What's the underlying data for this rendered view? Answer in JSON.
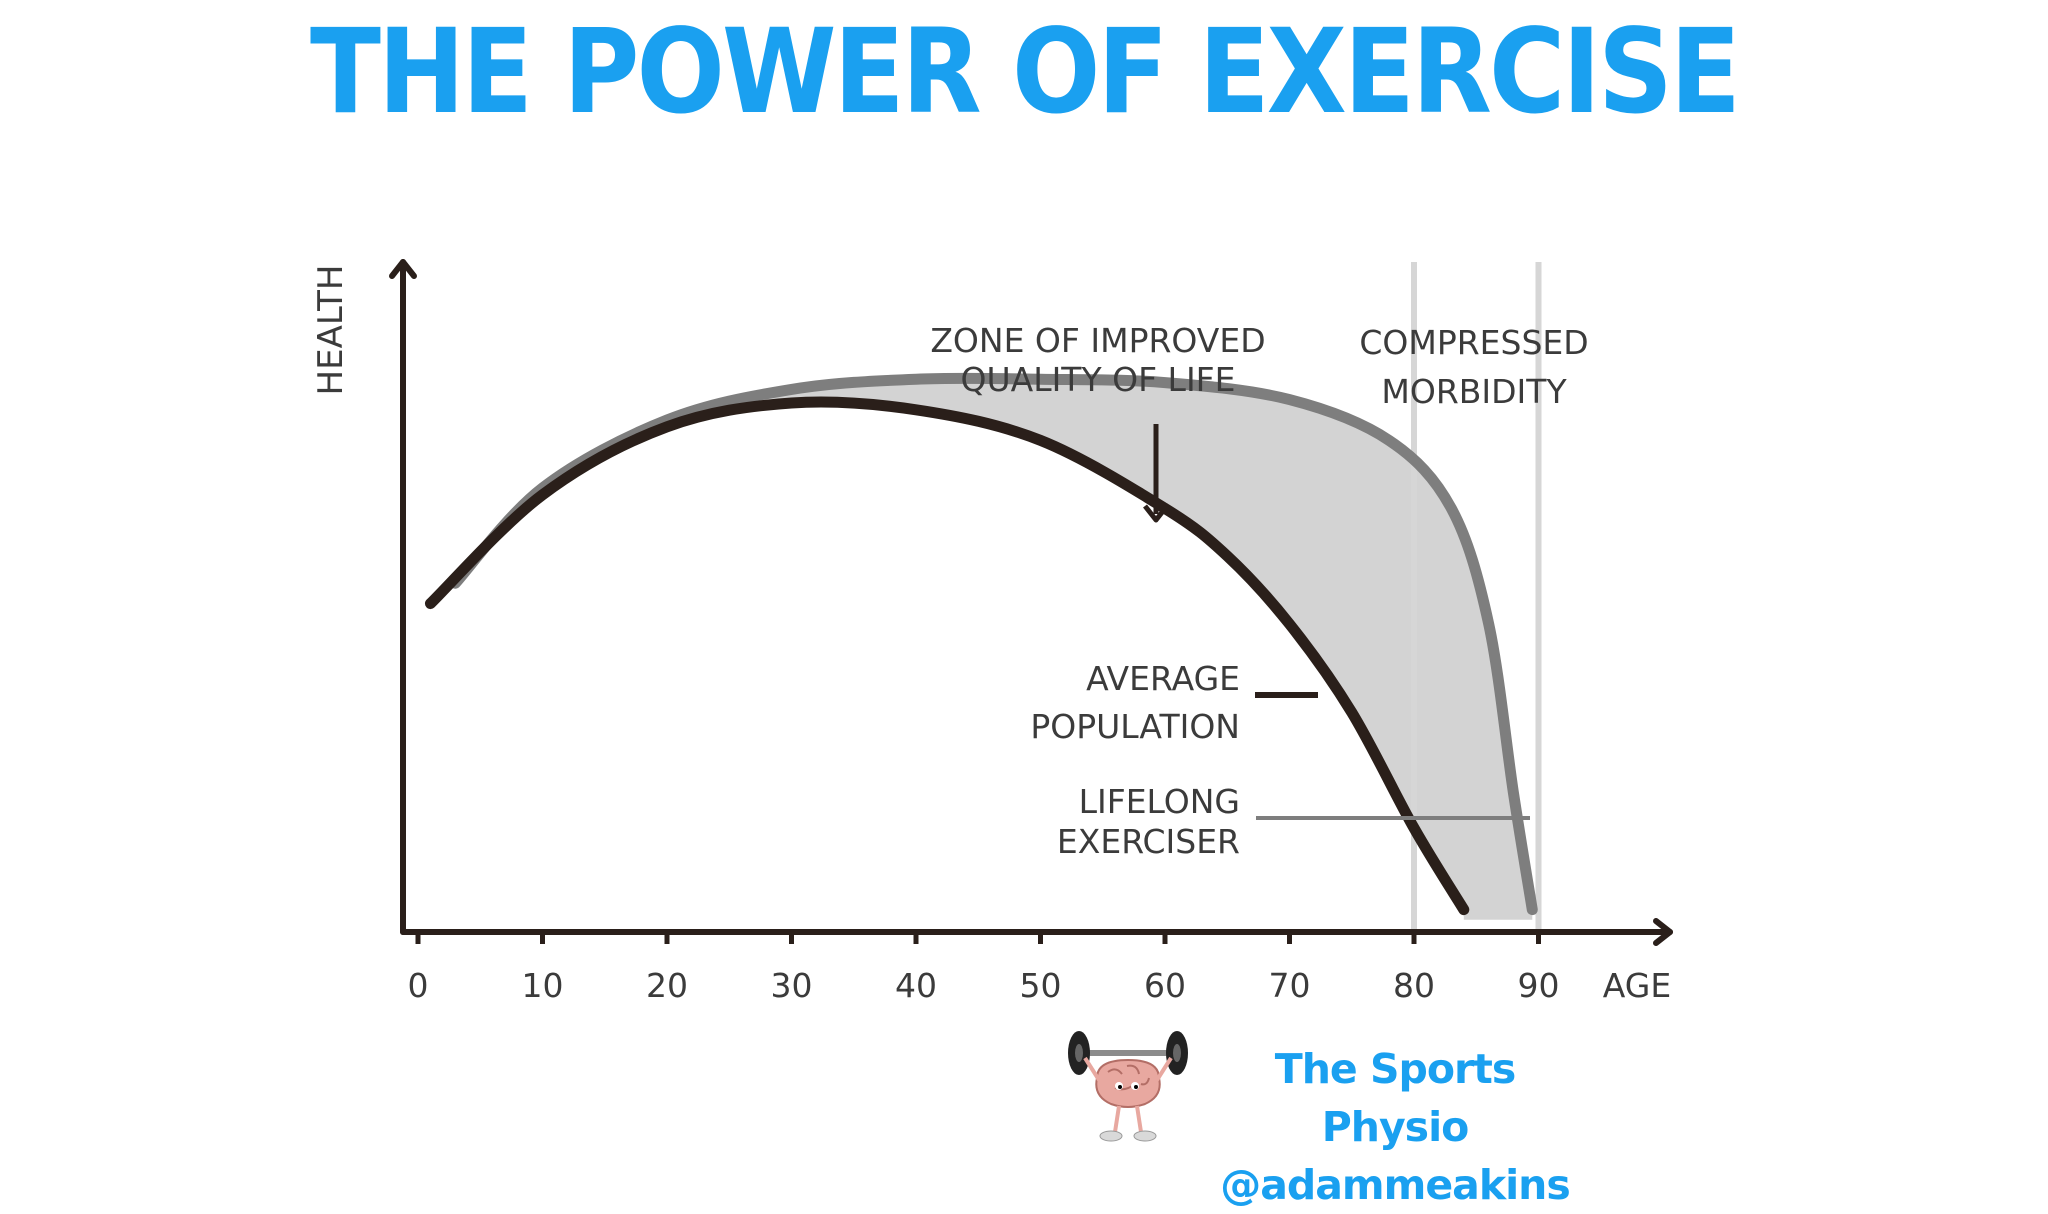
{
  "title": "THE POWER OF EXERCISE",
  "colors": {
    "title": "#1aa0f0",
    "axis": "#2a1f1a",
    "average_line": "#2a1f1a",
    "exerciser_line": "#7e7e7e",
    "zone_fill": "#d3d3d3",
    "marker_lines": "#d6d6d6",
    "brand": "#1aa0f0"
  },
  "chart_data": {
    "type": "line",
    "xlabel": "AGE",
    "ylabel": "HEALTH",
    "xlim": [
      0,
      100
    ],
    "x_ticks": [
      "0",
      "10",
      "20",
      "30",
      "40",
      "50",
      "60",
      "70",
      "80",
      "90"
    ],
    "y_ticks": [],
    "grid": false,
    "series": [
      {
        "name": "AVERAGE POPULATION",
        "color": "#2a1f1a",
        "x": [
          1,
          10,
          20,
          30,
          40,
          50,
          60,
          65,
          70,
          75,
          80,
          84
        ],
        "y": [
          48,
          64,
          74,
          77.5,
          76.5,
          72,
          62,
          55,
          45,
          32,
          15,
          3
        ]
      },
      {
        "name": "LIFELONG EXERCISER",
        "color": "#7e7e7e",
        "x": [
          3,
          10,
          20,
          30,
          40,
          50,
          60,
          70,
          78,
          83,
          86,
          88,
          89.5
        ],
        "y": [
          51,
          65,
          75,
          79.5,
          81,
          81,
          80.5,
          78,
          72,
          62,
          45,
          20,
          3
        ]
      }
    ],
    "annotations": [
      {
        "text_lines": [
          "ZONE OF IMPROVED",
          "QUALITY OF LIFE"
        ],
        "arrow": "down"
      },
      {
        "text_lines": [
          "COMPRESSED",
          "MORBIDITY"
        ],
        "vertical_lines_at_x": [
          80,
          90
        ]
      },
      {
        "text_lines": [
          "AVERAGE",
          "POPULATION"
        ]
      },
      {
        "text_lines": [
          "LIFELONG",
          "EXERCISER"
        ]
      }
    ]
  },
  "brand": {
    "line1": "The Sports Physio",
    "line2": "@adammeakins",
    "logo_icon": "brain-lifting-barbell-icon"
  }
}
